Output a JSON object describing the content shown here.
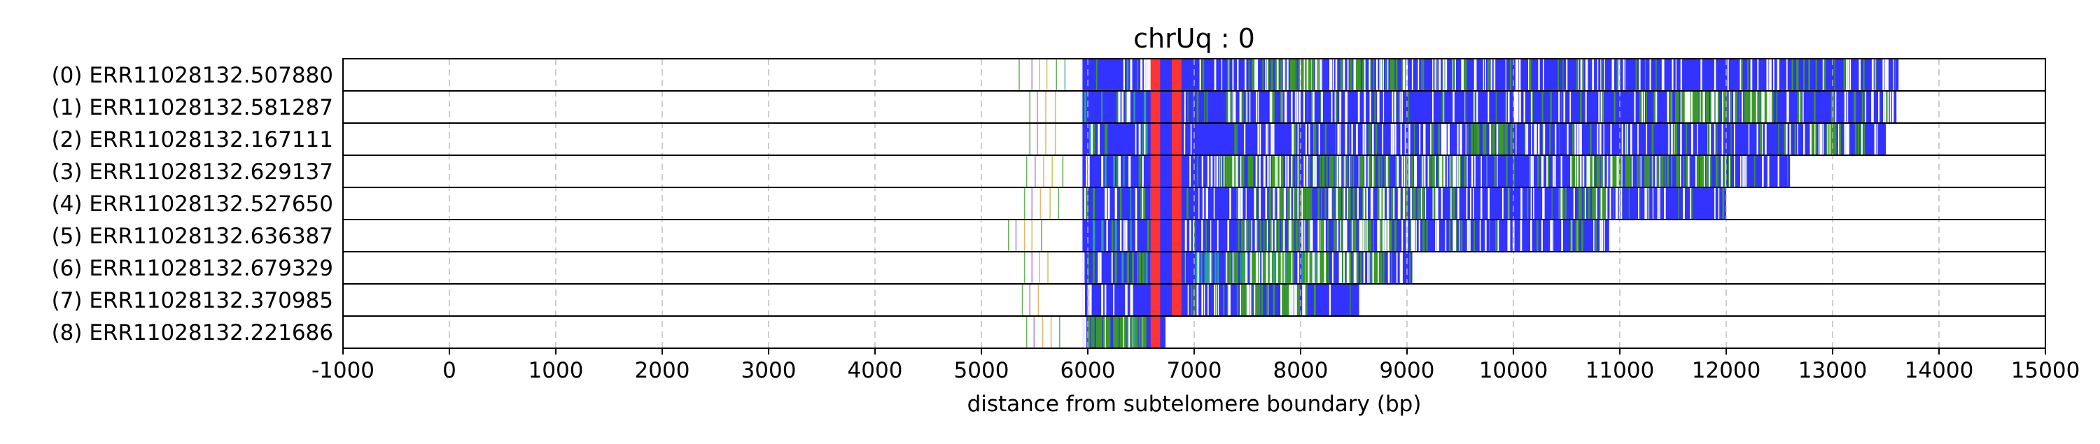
{
  "chart_data": {
    "type": "heatmap",
    "title": "chrUq : 0",
    "xlabel": "distance from subtelomere boundary (bp)",
    "ylabel": "",
    "xlim": [
      -1000,
      15000
    ],
    "xticks": [
      -1000,
      0,
      1000,
      2000,
      3000,
      4000,
      5000,
      6000,
      7000,
      8000,
      9000,
      10000,
      11000,
      12000,
      13000,
      14000,
      15000
    ],
    "x_grid": true,
    "legend": "none",
    "colors": {
      "main": "#3333ff",
      "red": "#ff3333",
      "green": "#3a9a28",
      "teal": "#2aa198",
      "white": "#ffffff",
      "purple": "#9966cc",
      "orange": "#e0a040",
      "olive": "#b5b530"
    },
    "rows": [
      {
        "label": "(0) ERR11028132.507880",
        "start": 5950,
        "end": 13620,
        "green_zones": [
          [
            7500,
            9000
          ]
        ],
        "dense": 0.1,
        "pre": [
          5350,
          5470,
          5540,
          5610,
          5700,
          5780
        ]
      },
      {
        "label": "(1) ERR11028132.581287",
        "start": 5950,
        "end": 13600,
        "green_zones": [
          [
            7200,
            7500
          ],
          [
            11500,
            12500
          ]
        ],
        "dense": 0.06,
        "pre": [
          5450,
          5520,
          5600,
          5690
        ]
      },
      {
        "label": "(2) ERR11028132.167111",
        "start": 5950,
        "end": 13500,
        "green_zones": [
          [
            9600,
            10000
          ],
          [
            12800,
            13300
          ]
        ],
        "dense": 0.2,
        "pre": [
          5450,
          5520,
          5600,
          5690
        ]
      },
      {
        "label": "(3) ERR11028132.629137",
        "start": 5950,
        "end": 12600,
        "green_zones": [
          [
            7200,
            9500
          ],
          [
            10500,
            12200
          ]
        ],
        "dense": 0.28,
        "pre": [
          5420,
          5500,
          5580,
          5660,
          5760
        ]
      },
      {
        "label": "(4) ERR11028132.527650",
        "start": 5950,
        "end": 12000,
        "green_zones": [
          [
            7700,
            9200
          ],
          [
            10600,
            10900
          ]
        ],
        "dense": 0.25,
        "pre": [
          5400,
          5470,
          5550,
          5640,
          5720
        ]
      },
      {
        "label": "(5) ERR11028132.636387",
        "start": 5950,
        "end": 10900,
        "green_zones": [
          [
            7400,
            9200
          ]
        ],
        "dense": 0.1,
        "pre": [
          5250,
          5320,
          5400,
          5470,
          5560
        ]
      },
      {
        "label": "(6) ERR11028132.679329",
        "start": 5950,
        "end": 9050,
        "green_zones": [
          [
            7300,
            8800
          ]
        ],
        "dense": 0.3,
        "teal_zone": [
          7000,
          8200
        ],
        "pre": [
          5400,
          5470,
          5540,
          5620
        ]
      },
      {
        "label": "(7) ERR11028132.370985",
        "start": 5950,
        "end": 8550,
        "green_zones": [
          [
            7200,
            8000
          ]
        ],
        "dense": 0.12,
        "pre": [
          5380,
          5450,
          5530
        ]
      },
      {
        "label": "(8) ERR11028132.221686",
        "start": 5950,
        "end": 6730,
        "green_zones": [
          [
            6000,
            6550
          ]
        ],
        "dense": 0.7,
        "pre": [
          5420,
          5490,
          5570,
          5650,
          5730
        ]
      }
    ],
    "red_bands": [
      [
        6590,
        6680
      ],
      [
        6790,
        6880
      ]
    ]
  }
}
